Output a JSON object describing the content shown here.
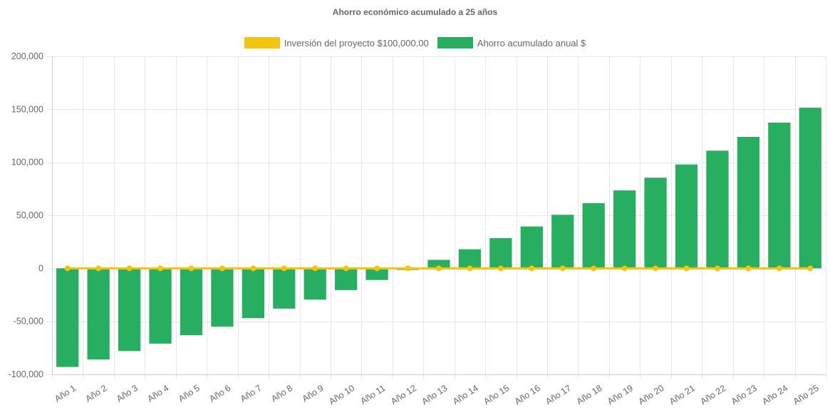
{
  "chart_data": {
    "type": "bar",
    "title": "Ahorro económico acumulado a 25 años",
    "categories": [
      "Año 1",
      "Año 2",
      "Año 3",
      "Año 4",
      "Año 5",
      "Año 6",
      "Año 7",
      "Año 8",
      "Año 9",
      "Año 10",
      "Año 11",
      "Año 12",
      "Año 13",
      "Año 14",
      "Año 15",
      "Año 16",
      "Año 17",
      "Año 18",
      "Año 19",
      "Año 20",
      "Año 21",
      "Año 22",
      "Año 23",
      "Año 24",
      "Año 25"
    ],
    "series": [
      {
        "name": "Inversión del proyecto $100,000.00",
        "type": "line",
        "color": "#f1c40f",
        "values": [
          0,
          0,
          0,
          0,
          0,
          0,
          0,
          0,
          0,
          0,
          0,
          0,
          0,
          0,
          0,
          0,
          0,
          0,
          0,
          0,
          0,
          0,
          0,
          0,
          0
        ]
      },
      {
        "name": "Ahorro acumulado anual $",
        "type": "bar",
        "color": "#27ae60",
        "values": [
          -93000,
          -86000,
          -78000,
          -71000,
          -63000,
          -55000,
          -47000,
          -38000,
          -29500,
          -20500,
          -11000,
          -1500,
          8000,
          18000,
          28500,
          39500,
          50500,
          61500,
          73500,
          85500,
          98000,
          111000,
          124000,
          137500,
          151500
        ]
      }
    ],
    "ylim": [
      -100000,
      200000
    ],
    "yticks": [
      "200,000",
      "150,000",
      "100,000",
      "50,000",
      "0",
      "-50,000",
      "-100,000"
    ],
    "ytick_values": [
      200000,
      150000,
      100000,
      50000,
      0,
      -50000,
      -100000
    ],
    "grid": true,
    "legend_position": "top",
    "xlabel": "",
    "ylabel": ""
  }
}
